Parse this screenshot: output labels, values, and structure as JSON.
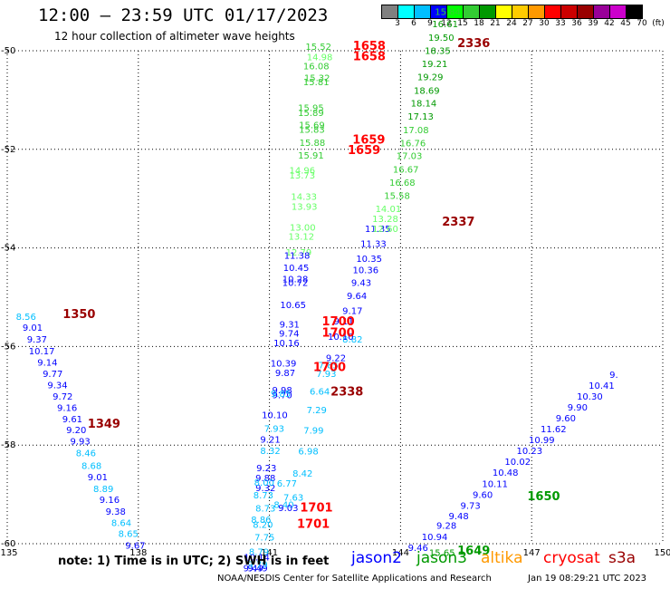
{
  "header": {
    "title": "12:00 – 23:59 UTC 01/17/2023",
    "subtitle": "12 hour collection of altimeter wave heights"
  },
  "color_scale": {
    "labels": [
      "3",
      "6",
      "9",
      "12",
      "15",
      "18",
      "21",
      "24",
      "27",
      "30",
      "33",
      "36",
      "39",
      "42",
      "45",
      "70",
      "(ft)"
    ],
    "colors": [
      "#808080",
      "#00ffff",
      "#00bfff",
      "#0000ff",
      "#00ff00",
      "#33cc33",
      "#009900",
      "#ffff00",
      "#ffcc00",
      "#ff9900",
      "#ff0000",
      "#cc0000",
      "#990000",
      "#990099",
      "#cc00cc",
      "#000000"
    ]
  },
  "note": "note:  1) Time is in UTC;  2) SWH is in feet",
  "satellites": [
    {
      "label": "jason2",
      "color": "#0000ff"
    },
    {
      "label": "jason3",
      "color": "#009900"
    },
    {
      "label": "altika",
      "color": "#ff9900"
    },
    {
      "label": "cryosat",
      "color": "#ff0000"
    },
    {
      "label": "s3a",
      "color": "#990000"
    }
  ],
  "footer": {
    "left": "NOAA/NESDIS Center for Satellite Applications and Research",
    "right": "Jan 19 08:29:21 UTC 2023"
  },
  "chart_data": {
    "type": "scatter",
    "xlim": [
      135,
      150
    ],
    "ylim": [
      -60,
      -50
    ],
    "xticks": [
      "135",
      "138",
      "141",
      "144",
      "147",
      "150"
    ],
    "yticks": [
      "-50",
      "-52",
      "-54",
      "-56",
      "-58",
      "-60"
    ],
    "grid": true,
    "series": [
      {
        "color": "#00bfff",
        "points": [
          [
            135.43,
            -55.46,
            "8.56"
          ]
        ]
      },
      {
        "color": "#0000ff",
        "points": [
          [
            135.58,
            -55.68,
            "9.01"
          ],
          [
            135.68,
            -55.92,
            "9.37"
          ],
          [
            135.79,
            -56.16,
            "10.17"
          ],
          [
            135.92,
            -56.39,
            "9.14"
          ],
          [
            136.04,
            -56.62,
            "9.77"
          ],
          [
            136.15,
            -56.85,
            "9.34"
          ],
          [
            136.27,
            -57.08,
            "9.72"
          ],
          [
            136.37,
            -57.31,
            "9.16"
          ],
          [
            136.49,
            -57.54,
            "9.61"
          ],
          [
            136.58,
            -57.76,
            "9.20"
          ],
          [
            136.67,
            -57.99,
            "9.93"
          ]
        ]
      },
      {
        "color": "#00bfff",
        "points": [
          [
            136.8,
            -58.23,
            "8.46"
          ],
          [
            136.93,
            -58.48,
            "8.68"
          ]
        ]
      },
      {
        "color": "#0000ff",
        "points": [
          [
            137.07,
            -58.71,
            "9.01"
          ]
        ]
      },
      {
        "color": "#00bfff",
        "points": [
          [
            137.2,
            -58.95,
            "8.89"
          ]
        ]
      },
      {
        "color": "#0000ff",
        "points": [
          [
            137.34,
            -59.17,
            "9.16"
          ],
          [
            137.48,
            -59.41,
            "9.38"
          ]
        ]
      },
      {
        "color": "#00bfff",
        "points": [
          [
            137.61,
            -59.64,
            "8.64"
          ],
          [
            137.77,
            -59.86,
            "8.65"
          ]
        ]
      },
      {
        "color": "#0000ff",
        "points": [
          [
            137.93,
            -60.1,
            "9.67"
          ]
        ]
      },
      {
        "color": "#33cc33",
        "points": [
          [
            142.12,
            -49.98,
            "15.52"
          ]
        ]
      },
      {
        "color": "#66ff66",
        "points": [
          [
            142.15,
            -50.19,
            "14.98"
          ]
        ]
      },
      {
        "color": "#33cc33",
        "points": [
          [
            142.07,
            -50.38,
            "16.08"
          ],
          [
            142.09,
            -50.62,
            "15.32"
          ],
          [
            142.07,
            -50.7,
            "15.81"
          ],
          [
            141.95,
            -51.22,
            "15.95"
          ],
          [
            141.95,
            -51.32,
            "15.89"
          ],
          [
            141.97,
            -51.57,
            "15.69"
          ],
          [
            141.97,
            -51.66,
            "15.83"
          ],
          [
            141.98,
            -51.93,
            "15.88"
          ],
          [
            141.95,
            -52.19,
            "15.91"
          ]
        ]
      },
      {
        "color": "#66ff66",
        "points": [
          [
            141.75,
            -52.49,
            "14.96"
          ],
          [
            141.75,
            -52.59,
            "13.73"
          ],
          [
            141.79,
            -53.02,
            "14.33"
          ],
          [
            141.8,
            -53.23,
            "13.93"
          ],
          [
            141.76,
            -53.65,
            "13.00"
          ],
          [
            141.73,
            -53.83,
            "13.12"
          ],
          [
            141.67,
            -54.15,
            "12.79"
          ]
        ]
      },
      {
        "color": "#0000ff",
        "points": [
          [
            141.63,
            -54.22,
            "11.38"
          ],
          [
            141.61,
            -54.47,
            "10.45"
          ],
          [
            141.59,
            -54.7,
            "10.28"
          ],
          [
            141.59,
            -54.77,
            "10.72"
          ],
          [
            141.54,
            -55.22,
            "10.65"
          ],
          [
            141.46,
            -55.62,
            "9.31"
          ],
          [
            141.45,
            -55.8,
            "9.74"
          ],
          [
            141.39,
            -55.99,
            "10.16"
          ],
          [
            141.32,
            -56.41,
            "10.39"
          ],
          [
            141.36,
            -56.6,
            "9.87"
          ]
        ]
      },
      {
        "color": "#0000ff",
        "points": [
          [
            141.29,
            -56.95,
            "9.98"
          ],
          [
            141.29,
            -57.05,
            "9.70"
          ]
        ]
      },
      {
        "color": "#00bfff",
        "points": [
          [
            141.26,
            -57.02,
            "9.85"
          ]
        ]
      },
      {
        "color": "#0000ff",
        "points": [
          [
            141.12,
            -57.45,
            "10.10"
          ]
        ]
      },
      {
        "color": "#00bfff",
        "points": [
          [
            141.11,
            -57.73,
            "7.93"
          ]
        ]
      },
      {
        "color": "#0000ff",
        "points": [
          [
            141.02,
            -57.95,
            "9.21"
          ]
        ]
      },
      {
        "color": "#00bfff",
        "points": [
          [
            141.02,
            -58.18,
            "8.32"
          ]
        ]
      },
      {
        "color": "#0000ff",
        "points": [
          [
            140.93,
            -58.53,
            "9.23"
          ],
          [
            140.91,
            -58.73,
            "9.88"
          ],
          [
            140.91,
            -58.93,
            "9.32"
          ]
        ]
      },
      {
        "color": "#00bfff",
        "points": [
          [
            140.88,
            -58.82,
            "8.00"
          ],
          [
            140.86,
            -59.08,
            "8.73"
          ],
          [
            140.91,
            -59.35,
            "8.73"
          ],
          [
            140.81,
            -59.58,
            "8.86"
          ],
          [
            140.85,
            -59.68,
            "8.20"
          ],
          [
            140.89,
            -59.94,
            "7.75"
          ],
          [
            140.76,
            -60.23,
            "8.79"
          ]
        ]
      },
      {
        "color": "#0000ff",
        "points": [
          [
            140.71,
            -60.34,
            "10.14"
          ],
          [
            140.63,
            -60.56,
            "9.49"
          ],
          [
            140.73,
            -60.56,
            "9.49"
          ]
        ]
      },
      {
        "color": "#00bfff",
        "points": [
          [
            140.73,
            -60.49,
            "9.79"
          ]
        ]
      },
      {
        "color": "#00bfff",
        "points": [
          [
            141.4,
            -58.84,
            "6.77"
          ],
          [
            141.55,
            -59.13,
            "7.63"
          ],
          [
            141.33,
            -59.27,
            "8.40"
          ],
          [
            141.76,
            -58.64,
            "8.42"
          ],
          [
            141.89,
            -58.19,
            "6.98"
          ],
          [
            142.01,
            -57.77,
            "7.99"
          ],
          [
            142.08,
            -57.35,
            "7.29"
          ],
          [
            142.15,
            -56.98,
            "6.64"
          ],
          [
            142.3,
            -56.62,
            "7.93"
          ],
          [
            142.35,
            -56.44,
            "7.85"
          ],
          [
            142.9,
            -55.92,
            "8.82"
          ]
        ]
      },
      {
        "color": "#0000ff",
        "points": [
          [
            141.43,
            -59.34,
            "9.03"
          ],
          [
            142.52,
            -56.3,
            "9.22"
          ],
          [
            142.63,
            -55.86,
            "10.10"
          ],
          [
            142.7,
            -55.55,
            "9.11"
          ],
          [
            142.9,
            -55.34,
            "9.17"
          ],
          [
            143.0,
            -55.04,
            "9.64"
          ],
          [
            143.1,
            -54.77,
            "9.43"
          ],
          [
            143.2,
            -54.51,
            "10.36"
          ],
          [
            143.28,
            -54.28,
            "10.35"
          ],
          [
            143.38,
            -53.98,
            "11.33"
          ],
          [
            143.48,
            -53.68,
            "11.35"
          ]
        ]
      },
      {
        "color": "#66ff66",
        "points": [
          [
            143.65,
            -53.68,
            "12.60"
          ],
          [
            143.65,
            -53.47,
            "13.28"
          ],
          [
            143.72,
            -53.27,
            "14.01"
          ]
        ]
      },
      {
        "color": "#33cc33",
        "points": [
          [
            143.92,
            -53.01,
            "15.58"
          ],
          [
            144.04,
            -52.74,
            "16.68"
          ],
          [
            144.12,
            -52.47,
            "16.67"
          ],
          [
            144.2,
            -52.2,
            "17.03"
          ],
          [
            144.28,
            -51.94,
            "16.76"
          ],
          [
            144.35,
            -51.67,
            "17.08"
          ]
        ]
      },
      {
        "color": "#009900",
        "points": [
          [
            144.46,
            -51.4,
            "17.13"
          ],
          [
            144.53,
            -51.13,
            "18.14"
          ],
          [
            144.6,
            -50.87,
            "18.69"
          ],
          [
            144.68,
            -50.6,
            "19.29"
          ],
          [
            144.78,
            -50.33,
            "19.21"
          ],
          [
            144.85,
            -50.06,
            "18.35"
          ],
          [
            144.93,
            -49.8,
            "19.50"
          ],
          [
            145.02,
            -49.52,
            "16.61"
          ]
        ]
      },
      {
        "color": "#33cc33",
        "points": [
          [
            145.08,
            -49.27,
            "15.84"
          ]
        ]
      },
      {
        "color": "#0000ff",
        "points": [
          [
            144.4,
            -60.15,
            "9.46"
          ],
          [
            144.78,
            -59.93,
            "10.94"
          ],
          [
            145.05,
            -59.7,
            "9.28"
          ],
          [
            145.33,
            -59.5,
            "9.48"
          ],
          [
            145.6,
            -59.29,
            "9.73"
          ],
          [
            145.88,
            -59.07,
            "9.60"
          ],
          [
            146.16,
            -58.85,
            "10.11"
          ],
          [
            146.4,
            -58.62,
            "10.48"
          ],
          [
            146.68,
            -58.4,
            "10.02"
          ],
          [
            146.95,
            -58.18,
            "10.23"
          ],
          [
            147.23,
            -57.96,
            "10.99"
          ],
          [
            147.5,
            -57.74,
            "11.62"
          ],
          [
            147.78,
            -57.52,
            "9.60"
          ],
          [
            148.05,
            -57.3,
            "9.90"
          ],
          [
            148.33,
            -57.08,
            "10.30"
          ],
          [
            148.6,
            -56.86,
            "10.41"
          ],
          [
            148.88,
            -56.64,
            "9."
          ]
        ]
      },
      {
        "color": "#009900",
        "points": [
          [
            144.95,
            -60.25,
            "15.65"
          ]
        ]
      }
    ],
    "time_labels": [
      {
        "x": 136.27,
        "y": -55.42,
        "text": "1350",
        "color": "#990000"
      },
      {
        "x": 136.84,
        "y": -57.65,
        "text": "1349",
        "color": "#990000"
      },
      {
        "x": 142.91,
        "y": -49.98,
        "text": "1658",
        "color": "#ff0000"
      },
      {
        "x": 142.91,
        "y": -50.19,
        "text": "1658",
        "color": "#ff0000"
      },
      {
        "x": 142.9,
        "y": -51.88,
        "text": "1659",
        "color": "#ff0000"
      },
      {
        "x": 142.79,
        "y": -52.1,
        "text": "1659",
        "color": "#ff0000"
      },
      {
        "x": 142.2,
        "y": -55.57,
        "text": "1700",
        "color": "#ff0000"
      },
      {
        "x": 142.2,
        "y": -55.8,
        "text": "1700",
        "color": "#ff0000"
      },
      {
        "x": 142.0,
        "y": -56.5,
        "text": "1700",
        "color": "#ff0000"
      },
      {
        "x": 141.7,
        "y": -59.35,
        "text": "1701",
        "color": "#ff0000"
      },
      {
        "x": 141.63,
        "y": -59.68,
        "text": "1701",
        "color": "#ff0000"
      },
      {
        "x": 142.4,
        "y": -56.99,
        "text": "2338",
        "color": "#990000"
      },
      {
        "x": 145.3,
        "y": -49.93,
        "text": "2336",
        "color": "#990000"
      },
      {
        "x": 144.95,
        "y": -53.55,
        "text": "2337",
        "color": "#990000"
      },
      {
        "x": 146.9,
        "y": -59.12,
        "text": "1650",
        "color": "#009900"
      },
      {
        "x": 145.3,
        "y": -60.22,
        "text": "1649",
        "color": "#009900"
      }
    ]
  }
}
